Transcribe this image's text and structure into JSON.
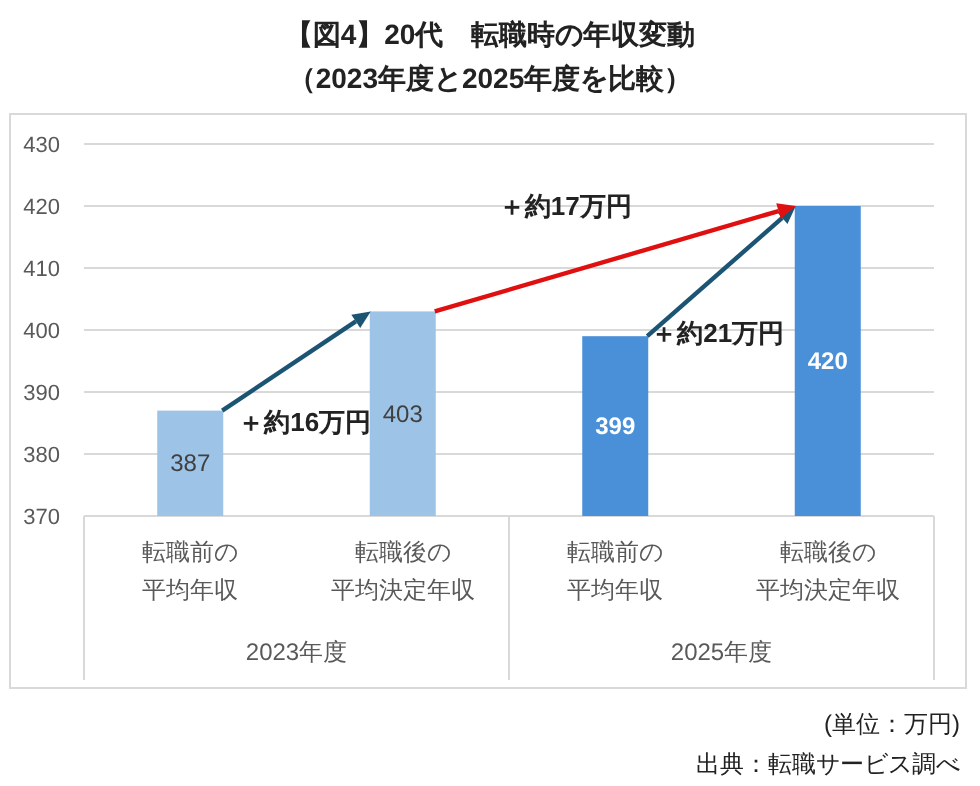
{
  "chart_data": {
    "type": "bar",
    "title": "【図4】20代　転職時の年収変動",
    "subtitle": "（2023年度と2025年度を比較）",
    "categories": [
      "転職前の平均年収",
      "転職後の平均決定年収",
      "転職前の平均年収",
      "転職後の平均決定年収"
    ],
    "values": [
      387,
      403,
      399,
      420
    ],
    "colors": [
      "#9dc3e6",
      "#9dc3e6",
      "#4a90d9",
      "#4a90d9"
    ],
    "data_labels": true,
    "ylim": [
      370,
      430
    ],
    "yticks": [
      370,
      380,
      390,
      400,
      410,
      420,
      430
    ],
    "grid": "y",
    "annotations": [
      "＋約16万円",
      "＋約17万円",
      "＋約21万円",
      "2023年度",
      "2025年度",
      "(単位：万円)",
      "出典：転職サービス調べ"
    ]
  }
}
